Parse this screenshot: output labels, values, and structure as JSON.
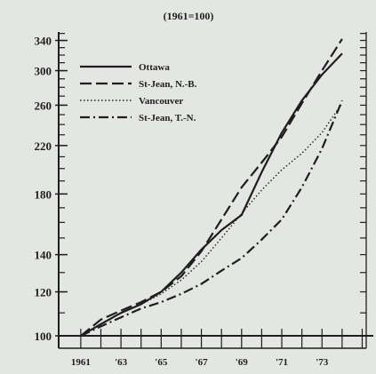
{
  "chart_data": {
    "type": "line",
    "subtitle": "(1961=100)",
    "x": [
      1961,
      1962,
      1963,
      1964,
      1965,
      1966,
      1967,
      1968,
      1969,
      1970,
      1971,
      1972,
      1973,
      1974
    ],
    "x_tick_labels": [
      "1961",
      "'63",
      "'65",
      "'67",
      "'69",
      "'71",
      "'73"
    ],
    "x_tick_values": [
      1961,
      1963,
      1965,
      1967,
      1969,
      1971,
      1973
    ],
    "xlim": [
      1959.9,
      1975.2
    ],
    "y_tick_labels": [
      "100",
      "120",
      "140",
      "180",
      "220",
      "260",
      "300",
      "340"
    ],
    "y_scale": "log",
    "ylim": [
      95,
      360
    ],
    "grid": false,
    "legend_position": "top-left",
    "series": [
      {
        "name": "Ottawa",
        "style": "solid",
        "values": [
          100,
          105,
          110,
          114,
          120,
          130,
          143,
          155,
          165,
          197,
          232,
          265,
          295,
          322
        ]
      },
      {
        "name": "St-Jean, N.-B.",
        "style": "dashed",
        "values": [
          100,
          107,
          111,
          115,
          120,
          128,
          142,
          162,
          185,
          205,
          228,
          262,
          300,
          342
        ]
      },
      {
        "name": "Vancouver",
        "style": "dotted",
        "values": [
          100,
          105,
          110,
          114,
          119,
          126,
          136,
          150,
          166,
          183,
          199,
          213,
          232,
          262
        ]
      },
      {
        "name": "St-Jean, T.-N.",
        "style": "dashdot",
        "values": [
          100,
          104,
          108,
          112,
          115,
          119,
          124,
          131,
          138,
          149,
          162,
          185,
          217,
          265
        ]
      }
    ]
  }
}
